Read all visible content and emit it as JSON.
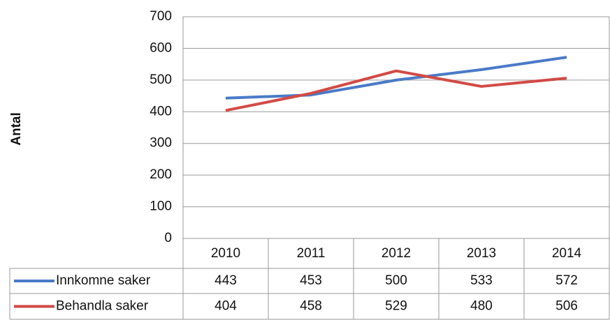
{
  "chart_data": {
    "type": "line",
    "y_label": "Antal",
    "categories": [
      "2010",
      "2011",
      "2012",
      "2013",
      "2014"
    ],
    "series": [
      {
        "name": "Innkomne saker",
        "color": "#4a7ac8",
        "values": [
          443,
          453,
          500,
          533,
          572
        ]
      },
      {
        "name": "Behandla saker",
        "color": "#d24a45",
        "values": [
          404,
          458,
          529,
          480,
          506
        ]
      }
    ],
    "ylim": [
      0,
      700
    ],
    "yticks": [
      0,
      100,
      200,
      300,
      400,
      500,
      600,
      700
    ],
    "grid": true,
    "data_table": true
  }
}
